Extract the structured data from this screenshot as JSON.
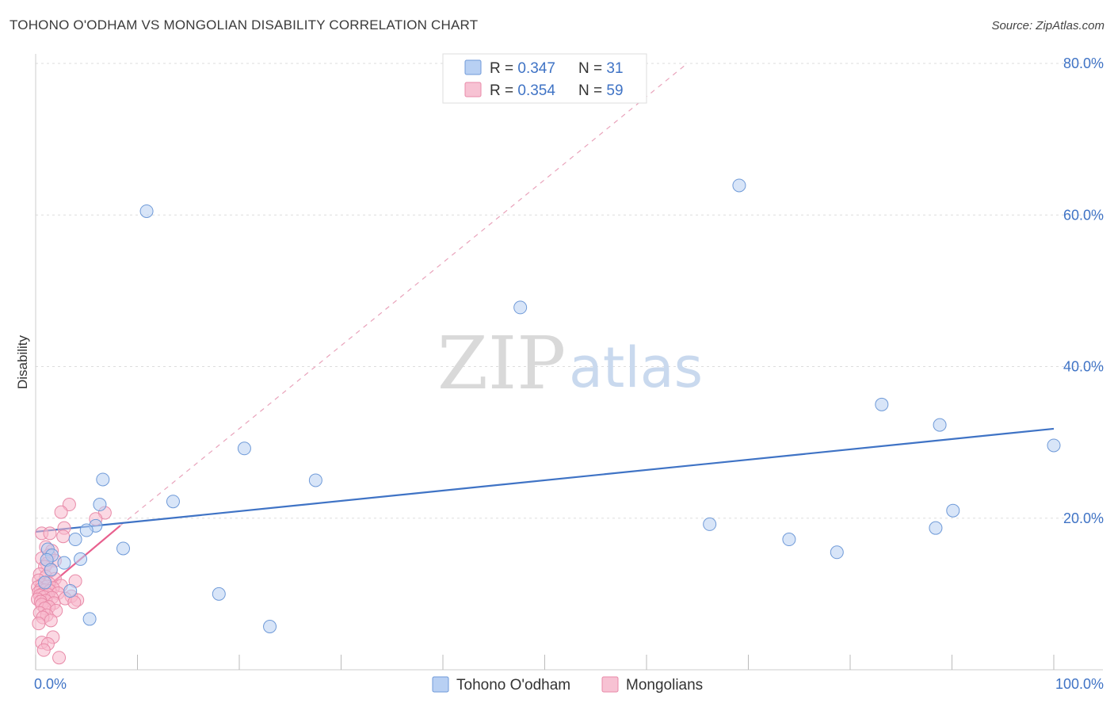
{
  "title": "TOHONO O'ODHAM VS MONGOLIAN DISABILITY CORRELATION CHART",
  "source": "Source: ZipAtlas.com",
  "watermark": {
    "zip": "ZIP",
    "atlas": "atlas"
  },
  "colors": {
    "blue": "#3f73c5",
    "blue_fill": "#b8d0f3",
    "pink": "#e8608e",
    "pink_fill": "#f7b8cc",
    "grid": "#dddddd"
  },
  "chart_data": {
    "type": "scatter",
    "xlabel": "",
    "ylabel": "Disability",
    "xlim": [
      0,
      100
    ],
    "ylim": [
      0,
      80
    ],
    "x_tick_labels": [
      "0.0%",
      "100.0%"
    ],
    "y_ticks": [
      20,
      40,
      60,
      80
    ],
    "y_tick_labels": [
      "20.0%",
      "40.0%",
      "60.0%",
      "80.0%"
    ],
    "grid": true,
    "legend_position": "top-center",
    "stats": [
      {
        "r_label": "R = ",
        "r": "0.347",
        "n_label": "N = ",
        "n": "31"
      },
      {
        "r_label": "R = ",
        "r": "0.354",
        "n_label": "N = ",
        "n": "59"
      }
    ],
    "series": [
      {
        "name": "Tohono O'odham",
        "color": "#3f73c5",
        "trend": {
          "x": [
            0,
            100
          ],
          "y": [
            18.2,
            31.8
          ]
        },
        "points": [
          [
            10.9,
            60.5
          ],
          [
            69.1,
            63.9
          ],
          [
            47.6,
            47.8
          ],
          [
            83.1,
            35.0
          ],
          [
            88.8,
            32.3
          ],
          [
            100.0,
            29.6
          ],
          [
            20.5,
            29.2
          ],
          [
            6.6,
            25.1
          ],
          [
            27.5,
            25.0
          ],
          [
            13.5,
            22.2
          ],
          [
            6.3,
            21.8
          ],
          [
            90.1,
            21.0
          ],
          [
            5.9,
            19.0
          ],
          [
            5.0,
            18.4
          ],
          [
            66.2,
            19.2
          ],
          [
            88.4,
            18.7
          ],
          [
            3.9,
            17.2
          ],
          [
            74.0,
            17.2
          ],
          [
            8.6,
            16.0
          ],
          [
            1.2,
            15.9
          ],
          [
            78.7,
            15.5
          ],
          [
            1.6,
            15.1
          ],
          [
            4.4,
            14.6
          ],
          [
            1.1,
            14.5
          ],
          [
            2.8,
            14.1
          ],
          [
            3.4,
            10.4
          ],
          [
            18.0,
            10.0
          ],
          [
            5.3,
            6.7
          ],
          [
            23.0,
            5.7
          ],
          [
            1.5,
            13.2
          ],
          [
            0.9,
            11.5
          ]
        ]
      },
      {
        "name": "Mongolians",
        "color": "#e8608e",
        "trend": {
          "x": [
            0,
            8.3
          ],
          "y": [
            9.6,
            19.0
          ]
        },
        "dashed": {
          "x": [
            8.3,
            64.0
          ],
          "y": [
            19.0,
            80.0
          ]
        },
        "points": [
          [
            3.3,
            21.8
          ],
          [
            2.5,
            20.8
          ],
          [
            6.8,
            20.7
          ],
          [
            5.9,
            19.9
          ],
          [
            2.8,
            18.7
          ],
          [
            0.6,
            18.0
          ],
          [
            1.4,
            18.0
          ],
          [
            2.7,
            17.6
          ],
          [
            1.0,
            16.2
          ],
          [
            1.6,
            15.7
          ],
          [
            1.3,
            15.1
          ],
          [
            0.6,
            14.7
          ],
          [
            1.9,
            14.4
          ],
          [
            1.1,
            14.0
          ],
          [
            0.9,
            13.6
          ],
          [
            1.5,
            13.1
          ],
          [
            0.4,
            12.6
          ],
          [
            1.0,
            12.3
          ],
          [
            1.9,
            12.0
          ],
          [
            0.3,
            11.8
          ],
          [
            3.9,
            11.7
          ],
          [
            1.3,
            11.4
          ],
          [
            0.6,
            11.2
          ],
          [
            2.5,
            11.1
          ],
          [
            1.1,
            11.0
          ],
          [
            0.2,
            10.9
          ],
          [
            1.7,
            10.8
          ],
          [
            0.5,
            10.6
          ],
          [
            0.9,
            10.5
          ],
          [
            1.4,
            10.4
          ],
          [
            0.3,
            10.2
          ],
          [
            2.2,
            10.1
          ],
          [
            0.7,
            10.0
          ],
          [
            1.2,
            9.9
          ],
          [
            0.4,
            9.8
          ],
          [
            3.5,
            9.7
          ],
          [
            0.8,
            9.6
          ],
          [
            1.6,
            9.5
          ],
          [
            2.9,
            9.4
          ],
          [
            0.2,
            9.3
          ],
          [
            4.1,
            9.2
          ],
          [
            1.0,
            9.1
          ],
          [
            0.5,
            9.0
          ],
          [
            1.8,
            8.8
          ],
          [
            0.6,
            8.6
          ],
          [
            3.8,
            8.9
          ],
          [
            1.3,
            8.3
          ],
          [
            0.9,
            8.1
          ],
          [
            2.0,
            7.8
          ],
          [
            0.4,
            7.5
          ],
          [
            1.1,
            7.2
          ],
          [
            0.7,
            6.9
          ],
          [
            1.5,
            6.5
          ],
          [
            0.3,
            6.1
          ],
          [
            1.7,
            4.3
          ],
          [
            0.6,
            3.6
          ],
          [
            1.2,
            3.4
          ],
          [
            2.3,
            1.6
          ],
          [
            0.8,
            2.6
          ]
        ]
      }
    ]
  }
}
